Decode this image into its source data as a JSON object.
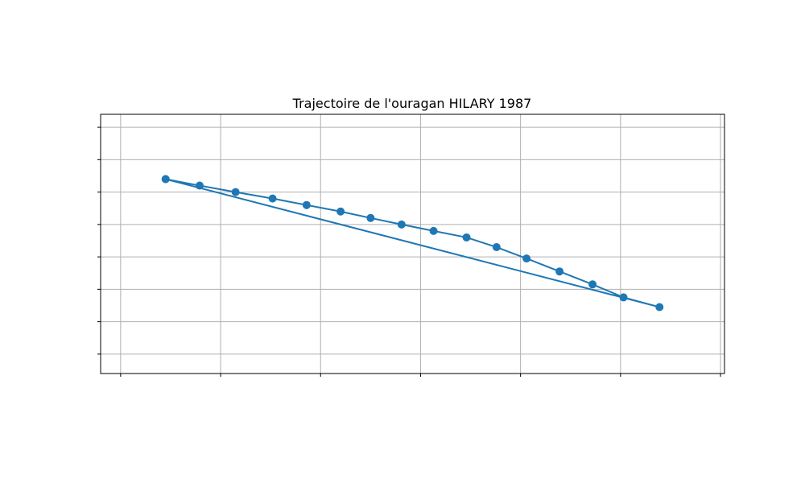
{
  "chart_data": {
    "type": "line",
    "title": "Trajectoire de l'ouragan HILARY 1987",
    "xlabel": "",
    "ylabel": "",
    "grid": true,
    "line_color": "#1f77b4",
    "grid_color": "#b0b0b0",
    "xlim": [
      -118.2,
      -87.0
    ],
    "ylim": [
      8.0,
      16.0
    ],
    "xticks": [
      -117.2,
      -112.2,
      -107.2,
      -102.2,
      -97.2,
      -92.2,
      -87.2
    ],
    "yticks": [
      8.6,
      9.6,
      10.6,
      11.6,
      12.6,
      13.6,
      14.6,
      15.6
    ],
    "series": [
      {
        "name": "",
        "x": [
          -114.95,
          -113.25,
          -111.45,
          -109.6,
          -107.9,
          -106.2,
          -104.7,
          -103.15,
          -101.55,
          -99.9,
          -98.4,
          -96.9,
          -95.25,
          -93.6,
          -92.05,
          -90.25,
          -114.95
        ],
        "y": [
          14.0,
          13.8,
          13.6,
          13.4,
          13.2,
          13.0,
          12.8,
          12.6,
          12.4,
          12.2,
          11.9,
          11.55,
          11.15,
          10.75,
          10.35,
          10.05,
          14.0
        ]
      }
    ]
  }
}
